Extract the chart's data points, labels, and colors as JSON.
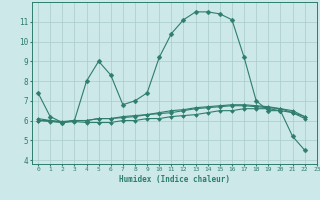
{
  "xlabel": "Humidex (Indice chaleur)",
  "background_color": "#cce8e8",
  "grid_color": "#aacccc",
  "line_color": "#2e7d6e",
  "xlim": [
    -0.5,
    23
  ],
  "ylim": [
    3.8,
    12.0
  ],
  "yticks": [
    4,
    5,
    6,
    7,
    8,
    9,
    10,
    11
  ],
  "xticks": [
    0,
    1,
    2,
    3,
    4,
    5,
    6,
    7,
    8,
    9,
    10,
    11,
    12,
    13,
    14,
    15,
    16,
    17,
    18,
    19,
    20,
    21,
    22,
    23
  ],
  "series": [
    {
      "x": [
        0,
        1,
        2,
        3,
        4,
        5,
        6,
        7,
        8,
        9,
        10,
        11,
        12,
        13,
        14,
        15,
        16,
        17,
        18,
        19,
        20,
        21,
        22
      ],
      "y": [
        7.4,
        6.2,
        5.9,
        6.0,
        8.0,
        9.0,
        8.3,
        6.8,
        7.0,
        7.4,
        9.2,
        10.4,
        11.1,
        11.5,
        11.5,
        11.4,
        11.1,
        9.2,
        7.0,
        6.5,
        6.5,
        5.2,
        4.5
      ]
    },
    {
      "x": [
        0,
        1,
        2,
        3,
        4,
        5,
        6,
        7,
        8,
        9,
        10,
        11,
        12,
        13,
        14,
        15,
        16,
        17,
        18,
        19,
        20,
        21,
        22
      ],
      "y": [
        6.0,
        5.95,
        5.9,
        5.95,
        5.9,
        5.9,
        5.9,
        6.0,
        6.0,
        6.1,
        6.1,
        6.2,
        6.25,
        6.3,
        6.4,
        6.5,
        6.5,
        6.6,
        6.6,
        6.6,
        6.5,
        6.4,
        6.2
      ]
    },
    {
      "x": [
        0,
        1,
        2,
        3,
        4,
        5,
        6,
        7,
        8,
        9,
        10,
        11,
        12,
        13,
        14,
        15,
        16,
        17,
        18,
        19,
        20,
        21,
        22
      ],
      "y": [
        6.0,
        6.0,
        5.9,
        6.0,
        6.0,
        6.1,
        6.1,
        6.15,
        6.2,
        6.3,
        6.35,
        6.4,
        6.5,
        6.6,
        6.65,
        6.7,
        6.75,
        6.75,
        6.7,
        6.65,
        6.6,
        6.4,
        6.1
      ]
    },
    {
      "x": [
        0,
        1,
        2,
        3,
        4,
        5,
        6,
        7,
        8,
        9,
        10,
        11,
        12,
        13,
        14,
        15,
        16,
        17,
        18,
        19,
        20,
        21,
        22
      ],
      "y": [
        6.1,
        6.0,
        5.95,
        6.0,
        6.0,
        6.1,
        6.1,
        6.2,
        6.25,
        6.3,
        6.4,
        6.5,
        6.55,
        6.65,
        6.7,
        6.75,
        6.8,
        6.8,
        6.75,
        6.7,
        6.6,
        6.5,
        6.2
      ]
    }
  ]
}
